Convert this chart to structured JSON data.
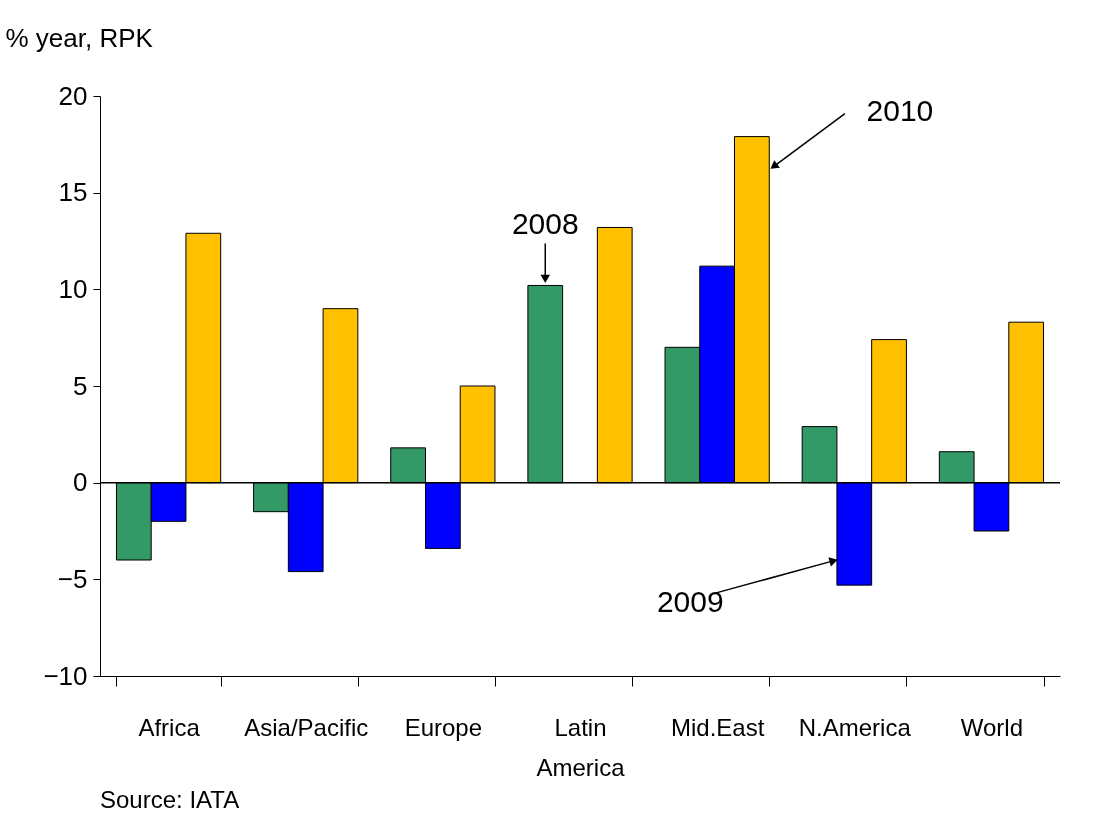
{
  "chart_data": {
    "type": "bar",
    "ylabel": "% year, RPK",
    "categories": [
      "Africa",
      "Asia/Pacific",
      "Europe",
      "Latin America",
      "Mid.East",
      "N.America",
      "World"
    ],
    "series": [
      {
        "name": "2008",
        "color": "#339966",
        "values": [
          -4.0,
          -1.5,
          1.8,
          10.2,
          7.0,
          2.9,
          1.6
        ]
      },
      {
        "name": "2009",
        "color": "#0000ff",
        "values": [
          -2.0,
          -4.6,
          -3.4,
          null,
          11.2,
          -5.3,
          -2.5
        ]
      },
      {
        "name": "2010",
        "color": "#ffc000",
        "values": [
          12.9,
          9.0,
          5.0,
          13.2,
          17.9,
          7.4,
          8.3
        ]
      }
    ],
    "ylim": [
      -10,
      20
    ],
    "yticks": [
      -10,
      -5,
      0,
      5,
      10,
      15,
      20
    ],
    "ref_lines": [
      {
        "axis": "y",
        "value": 0
      }
    ],
    "annotations": [
      "Source: IATA"
    ],
    "grid": false,
    "legend": false
  }
}
